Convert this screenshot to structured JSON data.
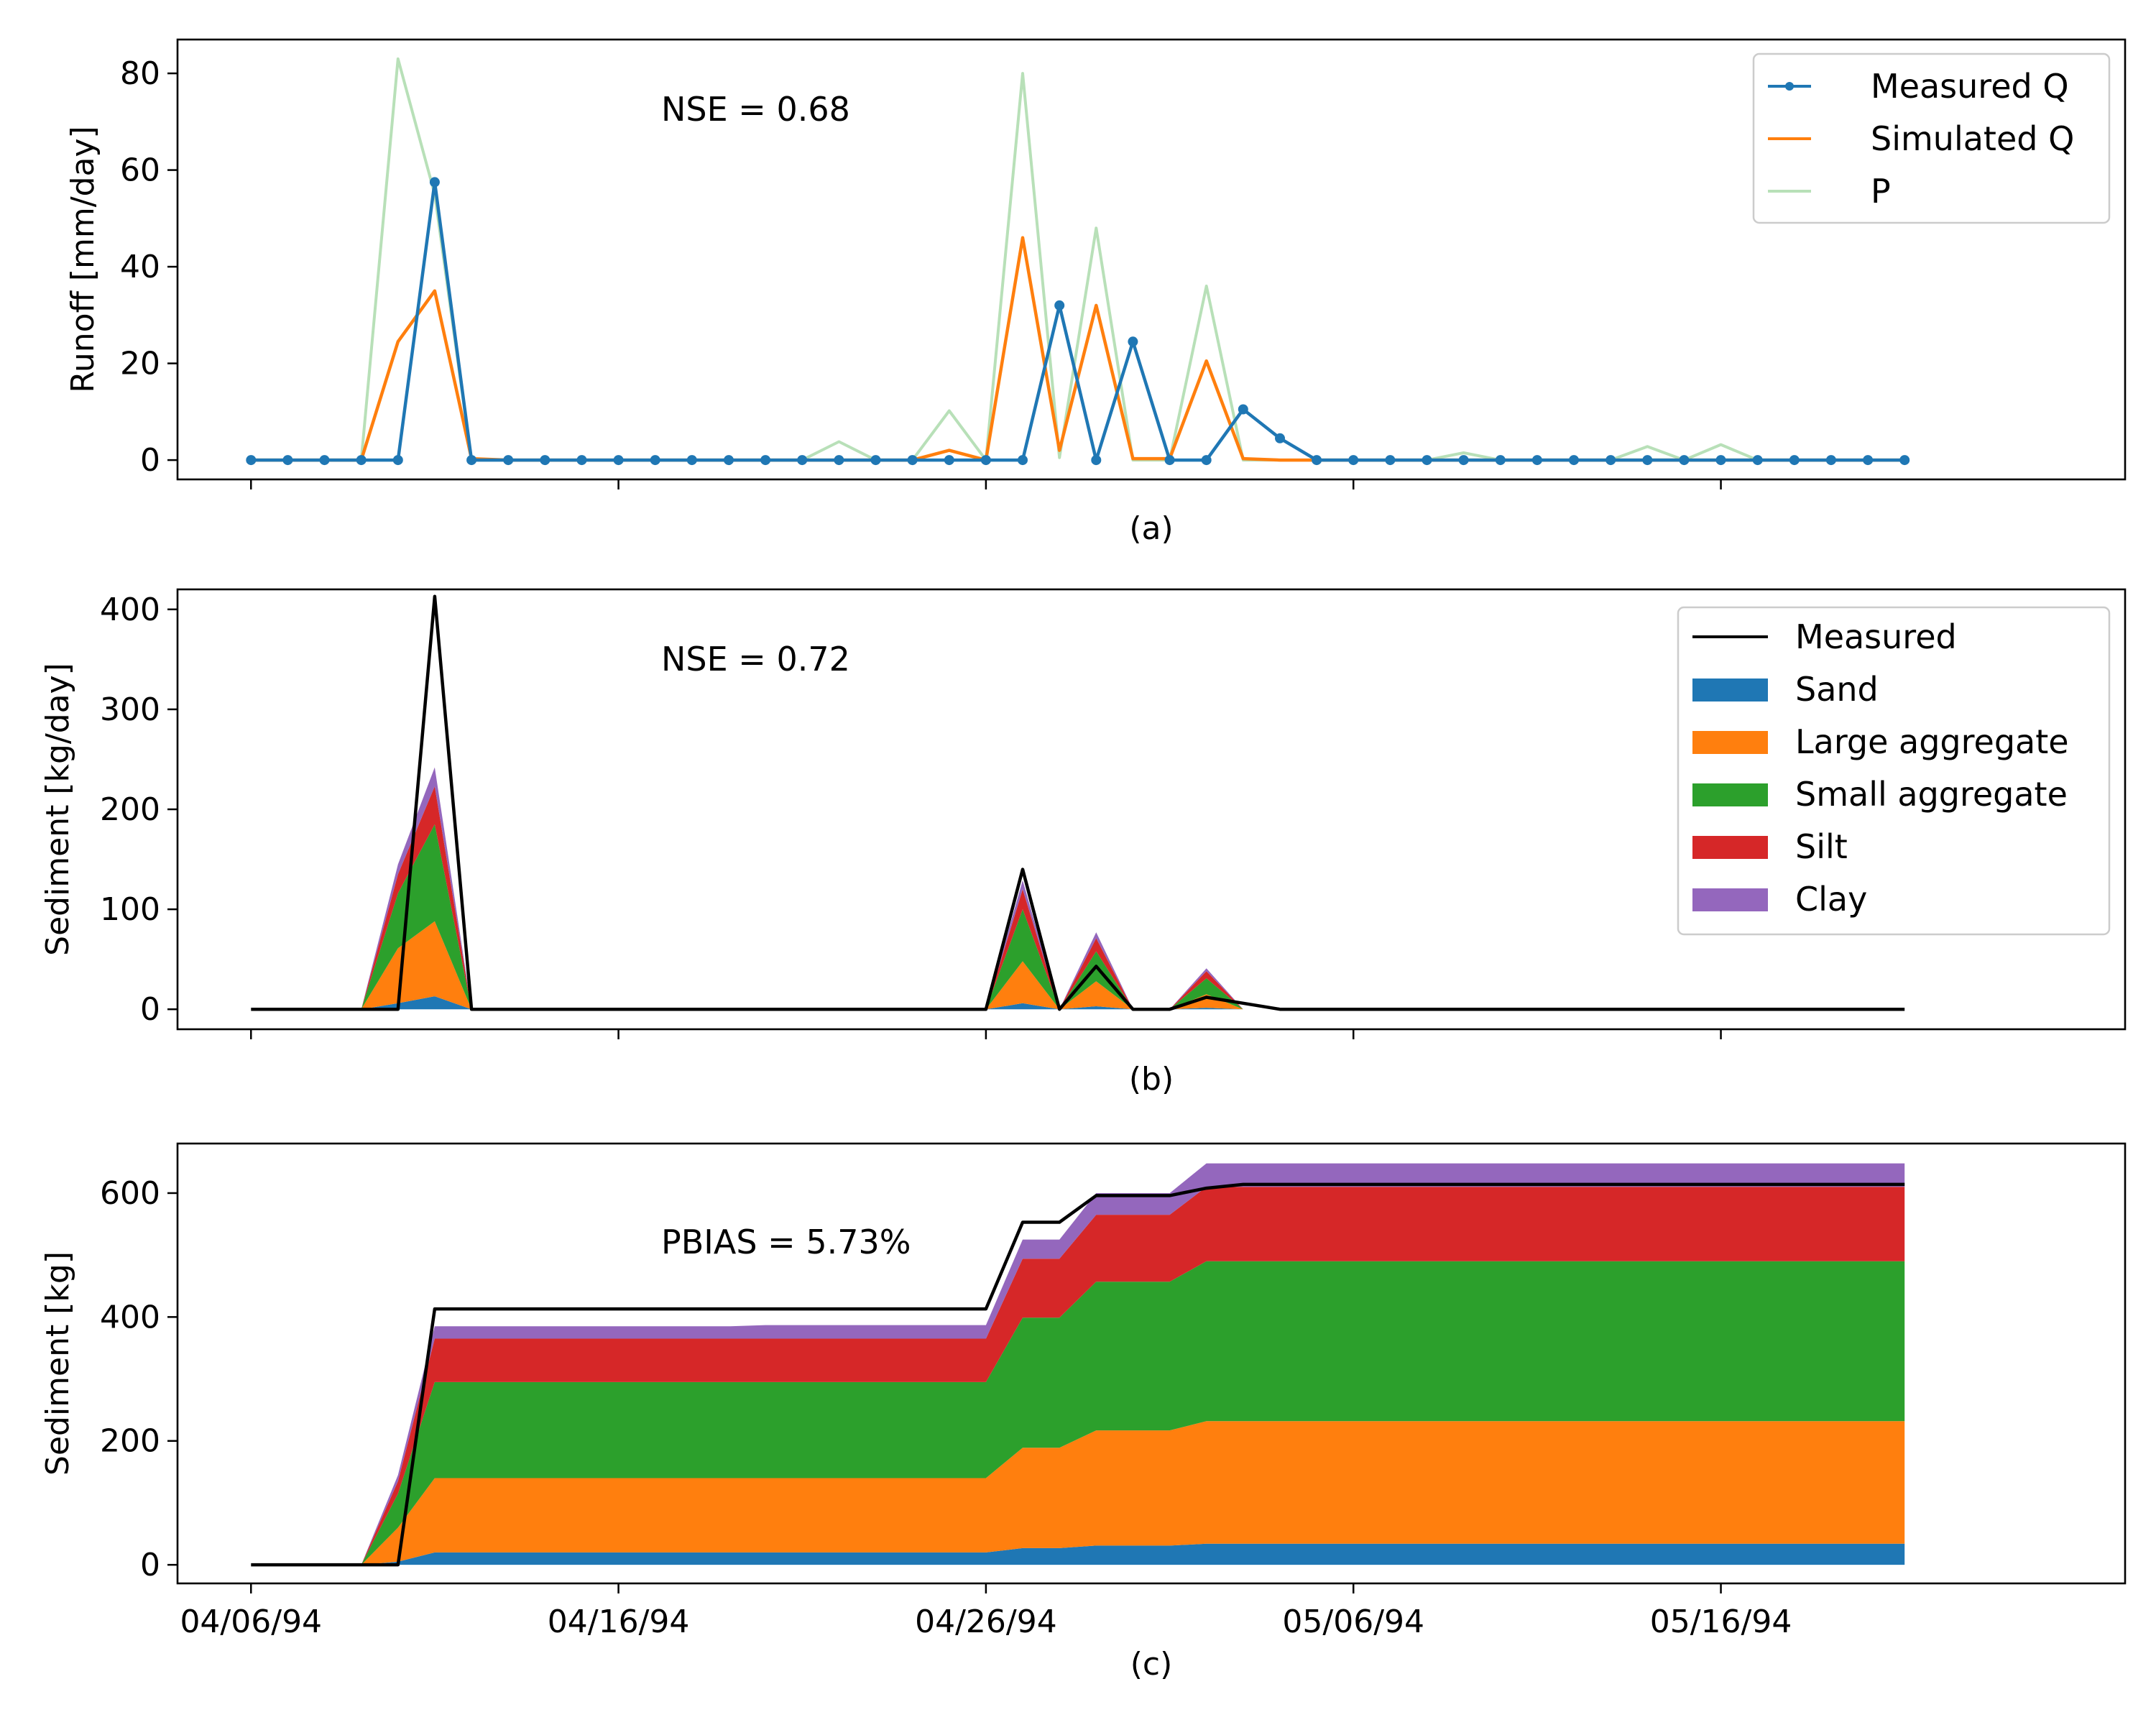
{
  "chart_data": [
    {
      "type": "line",
      "caption": "(a)",
      "annotation": "NSE = 0.68",
      "xlabel": "",
      "ylabel": "Runoff [mm/day]",
      "x_start": "04/06/94",
      "x_step_days": 1,
      "xlim": [
        "04/04/94",
        "05/27/94"
      ],
      "ylim": [
        -4,
        87
      ],
      "yticks": [
        0,
        20,
        40,
        60,
        80
      ],
      "xtick_labels": [],
      "legend_position": "top-right",
      "grid": false,
      "series": [
        {
          "name": "Measured Q",
          "color": "#1f77b4",
          "marker": "dot",
          "values": [
            0,
            0,
            0,
            0,
            0,
            57.5,
            0,
            0,
            0,
            0,
            0,
            0,
            0,
            0,
            0,
            0,
            0,
            0,
            0,
            0,
            0,
            0,
            32,
            0,
            24.5,
            0,
            0,
            10.5,
            4.5,
            0,
            0,
            0,
            0,
            0,
            0,
            0,
            0,
            0,
            0,
            0,
            0,
            0,
            0,
            0,
            0,
            0
          ]
        },
        {
          "name": "Simulated Q",
          "color": "#ff7f0e",
          "values": [
            0,
            0,
            0,
            0,
            24.5,
            35,
            0.3,
            0,
            0,
            0,
            0,
            0,
            0,
            0,
            0,
            0,
            0,
            0,
            0,
            2,
            0,
            46,
            2,
            32,
            0.3,
            0.3,
            20.5,
            0.3,
            0,
            0,
            0,
            0,
            0,
            0,
            0,
            0,
            0,
            0,
            0,
            0,
            0,
            0,
            0,
            0,
            0,
            0
          ]
        },
        {
          "name": "P",
          "color": "#b8e0b8",
          "values": [
            0,
            0,
            0,
            0,
            83,
            55,
            0,
            0,
            0,
            0,
            0,
            0,
            0,
            0,
            0,
            0,
            3.8,
            0,
            0,
            10.2,
            0,
            80,
            0.5,
            48,
            0,
            0,
            36,
            0,
            0,
            0,
            0,
            0,
            0,
            1.5,
            0,
            0,
            0,
            0,
            2.8,
            0,
            3.2,
            0,
            0,
            0,
            0,
            0
          ]
        }
      ]
    },
    {
      "type": "area",
      "caption": "(b)",
      "annotation": "NSE = 0.72",
      "xlabel": "",
      "ylabel": "Sediment [kg/day]",
      "x_start": "04/06/94",
      "x_step_days": 1,
      "xlim": [
        "04/04/94",
        "05/27/94"
      ],
      "ylim": [
        -20,
        420
      ],
      "yticks": [
        0,
        100,
        200,
        300,
        400
      ],
      "xtick_labels": [],
      "legend_position": "top-right",
      "grid": false,
      "stacked": true,
      "series": [
        {
          "name": "Sand",
          "color": "#1f77b4",
          "values": [
            0,
            0,
            0,
            0,
            6,
            13,
            0,
            0,
            0,
            0,
            0,
            0,
            0,
            0,
            0,
            0,
            0,
            0,
            0,
            0,
            0,
            6,
            0,
            3,
            0,
            0,
            1.5,
            0,
            0
          ]
        },
        {
          "name": "Large aggregate",
          "color": "#ff7f0e",
          "values": [
            0,
            0,
            0,
            0,
            55,
            75,
            0,
            0,
            0,
            0,
            0,
            0,
            0,
            0,
            0,
            0,
            0,
            0,
            0,
            0,
            0,
            42,
            0,
            25,
            0,
            0,
            13.5,
            0,
            0
          ]
        },
        {
          "name": "Small aggregate",
          "color": "#2ca02c",
          "values": [
            0,
            0,
            0,
            0,
            55,
            97,
            0,
            0,
            0,
            0,
            0,
            0,
            0,
            0,
            0,
            0,
            0,
            0,
            0,
            0,
            0,
            52,
            0,
            30,
            0,
            0,
            16,
            0,
            0
          ]
        },
        {
          "name": "Silt",
          "color": "#d62728",
          "values": [
            0,
            0,
            0,
            0,
            19,
            38,
            0,
            0,
            0,
            0,
            0,
            0,
            0,
            0,
            0,
            0,
            0,
            0,
            0,
            0,
            0,
            20,
            0,
            13,
            0,
            0,
            7,
            0,
            0
          ]
        },
        {
          "name": "Clay",
          "color": "#9467bd",
          "values": [
            0,
            0,
            0,
            0,
            10,
            19,
            0,
            0,
            0,
            0,
            0,
            0,
            0,
            0,
            0,
            0,
            0,
            0,
            0,
            0,
            0,
            9,
            0,
            6,
            0,
            0,
            3,
            0,
            0
          ]
        }
      ],
      "measured": {
        "name": "Measured",
        "color": "#000000",
        "values": [
          0,
          0,
          0,
          0,
          0,
          413,
          0,
          0,
          0,
          0,
          0,
          0,
          0,
          0,
          0,
          0,
          0,
          0,
          0,
          0,
          0,
          140,
          0,
          43,
          0,
          0,
          12,
          6,
          0,
          0,
          0,
          0,
          0,
          0,
          0,
          0,
          0,
          0,
          0,
          0,
          0,
          0,
          0,
          0,
          0,
          0
        ]
      }
    },
    {
      "type": "area",
      "caption": "(c)",
      "annotation": "PBIAS = 5.73%",
      "xlabel": "",
      "ylabel": "Sediment [kg]",
      "x_start": "04/06/94",
      "x_step_days": 1,
      "xlim": [
        "04/04/94",
        "05/27/94"
      ],
      "ylim": [
        -30,
        680
      ],
      "yticks": [
        0,
        200,
        400,
        600
      ],
      "xtick_labels": [
        "04/06/94",
        "04/16/94",
        "04/26/94",
        "05/06/94",
        "05/16/94"
      ],
      "xtick_dates": [
        "04/06/94",
        "04/16/94",
        "04/26/94",
        "05/06/94",
        "05/16/94"
      ],
      "grid": false,
      "stacked": true,
      "series": [
        {
          "name": "Sand",
          "color": "#1f77b4",
          "values": [
            0,
            0,
            0,
            0,
            5,
            20,
            20,
            20,
            20,
            20,
            20,
            20,
            20,
            20,
            20,
            20,
            20,
            20,
            20,
            20,
            20,
            27,
            27,
            31,
            31,
            31,
            34,
            34,
            34,
            34,
            34,
            34,
            34,
            34,
            34,
            34,
            34,
            34,
            34,
            34,
            34,
            34,
            34,
            34,
            34,
            34
          ]
        },
        {
          "name": "Large aggregate",
          "color": "#ff7f0e",
          "values": [
            0,
            0,
            0,
            0,
            55,
            120,
            120,
            120,
            120,
            120,
            120,
            120,
            120,
            120,
            120,
            120,
            120,
            120,
            120,
            120,
            120,
            162,
            162,
            186,
            186,
            186,
            198,
            198,
            198,
            198,
            198,
            198,
            198,
            198,
            198,
            198,
            198,
            198,
            198,
            198,
            198,
            198,
            198,
            198,
            198,
            198
          ]
        },
        {
          "name": "Small aggregate",
          "color": "#2ca02c",
          "values": [
            0,
            0,
            0,
            0,
            55,
            155,
            155,
            155,
            155,
            155,
            155,
            155,
            155,
            155,
            155,
            155,
            155,
            155,
            155,
            155,
            155,
            210,
            210,
            240,
            240,
            240,
            258,
            258,
            258,
            258,
            258,
            258,
            258,
            258,
            258,
            258,
            258,
            258,
            258,
            258,
            258,
            258,
            258,
            258,
            258,
            258
          ]
        },
        {
          "name": "Silt",
          "color": "#d62728",
          "values": [
            0,
            0,
            0,
            0,
            20,
            70,
            70,
            70,
            70,
            70,
            70,
            70,
            70,
            70,
            70,
            70,
            70,
            70,
            70,
            70,
            70,
            95,
            95,
            108,
            108,
            108,
            120,
            120,
            120,
            120,
            120,
            120,
            120,
            120,
            120,
            120,
            120,
            120,
            120,
            120,
            120,
            120,
            120,
            120,
            120,
            120
          ]
        },
        {
          "name": "Clay",
          "color": "#9467bd",
          "values": [
            0,
            0,
            0,
            0,
            10,
            20,
            20,
            20,
            20,
            20,
            20,
            20,
            20,
            20,
            22,
            22,
            22,
            22,
            22,
            22,
            22,
            31,
            31,
            35,
            35,
            35,
            38,
            38,
            38,
            38,
            38,
            38,
            38,
            38,
            38,
            38,
            38,
            38,
            38,
            38,
            38,
            38,
            38,
            38,
            38,
            38
          ]
        }
      ],
      "measured": {
        "name": "Measured",
        "color": "#000000",
        "values": [
          0,
          0,
          0,
          0,
          0,
          413,
          413,
          413,
          413,
          413,
          413,
          413,
          413,
          413,
          413,
          413,
          413,
          413,
          413,
          413,
          413,
          553,
          553,
          596,
          596,
          596,
          608,
          614,
          614,
          614,
          614,
          614,
          614,
          614,
          614,
          614,
          614,
          614,
          614,
          614,
          614,
          614,
          614,
          614,
          614,
          614
        ]
      }
    }
  ]
}
